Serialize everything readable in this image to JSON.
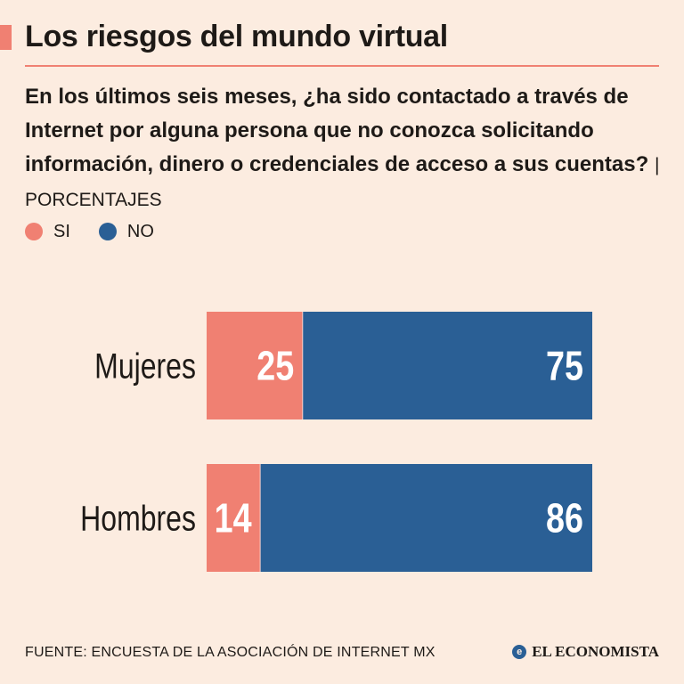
{
  "colors": {
    "accent": "#f08072",
    "si": "#f08072",
    "no": "#2a5f95",
    "text": "#1e1a17",
    "background": "#fcece0",
    "bar_label": "#ffffff"
  },
  "header": {
    "title": "Los riesgos del mundo virtual",
    "question": "En los últimos seis meses, ¿ha sido contactado a través de Internet por alguna persona que no conozca solicitando información, dinero o credenciales de acceso a sus cuentas?",
    "unit_label": "| PORCENTAJES"
  },
  "legend": {
    "si_label": "SI",
    "no_label": "NO"
  },
  "chart_data": {
    "type": "bar",
    "orientation": "horizontal",
    "stacked": true,
    "categories": [
      "Mujeres",
      "Hombres"
    ],
    "series": [
      {
        "name": "SI",
        "values": [
          25,
          14
        ]
      },
      {
        "name": "NO",
        "values": [
          75,
          86
        ]
      }
    ],
    "xlim": [
      0,
      100
    ],
    "title": "Los riesgos del mundo virtual",
    "xlabel": "",
    "ylabel": "",
    "grid": false,
    "legend_position": "top-left"
  },
  "footer": {
    "source": "FUENTE: ENCUESTA DE LA ASOCIACIÓN DE INTERNET MX",
    "brand": "EL ECONOMISTA",
    "brand_logo_letter": "e"
  }
}
